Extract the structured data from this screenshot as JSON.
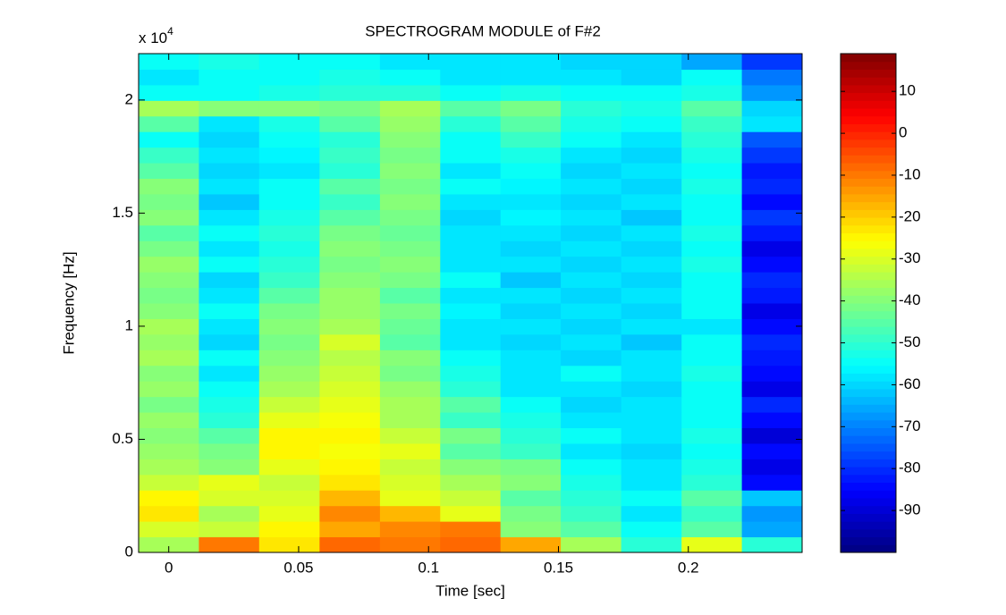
{
  "chart_data": {
    "type": "heatmap",
    "title": "SPECTROGRAM MODULE of F#2",
    "x_label": "Time [sec]",
    "y_label": "Frequency [Hz]",
    "y_scale_base": "x 10",
    "y_scale_exponent": "4",
    "colormap": "jet",
    "colormap_levels": 64,
    "x": [
      0,
      0.0232,
      0.0464,
      0.0697,
      0.0929,
      0.1161,
      0.1393,
      0.1625,
      0.1858,
      0.209,
      0.2322
    ],
    "y": [
      0.0345,
      0.1034,
      0.1723,
      0.2412,
      0.3101,
      0.379,
      0.4479,
      0.5168,
      0.5857,
      0.6546,
      0.7235,
      0.7924,
      0.8613,
      0.9302,
      0.9991,
      1.068,
      1.1369,
      1.2058,
      1.2747,
      1.3436,
      1.4125,
      1.4814,
      1.5503,
      1.6192,
      1.6881,
      1.757,
      1.8259,
      1.8948,
      1.9637,
      2.0326,
      2.1015,
      2.1704
    ],
    "z": [
      [
        -35,
        -10,
        -22,
        -8,
        -10,
        -8,
        -15,
        -35,
        -50,
        -28,
        -50
      ],
      [
        -30,
        -32,
        -25,
        -15,
        -12,
        -10,
        -40,
        -45,
        -55,
        -45,
        -65
      ],
      [
        -22,
        -35,
        -28,
        -12,
        -18,
        -28,
        -42,
        -48,
        -58,
        -48,
        -68
      ],
      [
        -25,
        -30,
        -30,
        -18,
        -28,
        -32,
        -45,
        -50,
        -55,
        -45,
        -62
      ],
      [
        -32,
        -28,
        -32,
        -22,
        -30,
        -35,
        -40,
        -52,
        -58,
        -50,
        -85
      ],
      [
        -36,
        -40,
        -28,
        -25,
        -32,
        -40,
        -42,
        -55,
        -58,
        -52,
        -88
      ],
      [
        -38,
        -42,
        -24,
        -26,
        -28,
        -45,
        -48,
        -58,
        -60,
        -55,
        -85
      ],
      [
        -40,
        -45,
        -25,
        -24,
        -32,
        -42,
        -50,
        -55,
        -58,
        -52,
        -90
      ],
      [
        -38,
        -50,
        -28,
        -26,
        -35,
        -48,
        -52,
        -58,
        -58,
        -55,
        -85
      ],
      [
        -42,
        -52,
        -32,
        -28,
        -36,
        -45,
        -55,
        -60,
        -58,
        -55,
        -80
      ],
      [
        -38,
        -55,
        -35,
        -30,
        -38,
        -50,
        -58,
        -58,
        -60,
        -55,
        -88
      ],
      [
        -40,
        -58,
        -38,
        -32,
        -42,
        -52,
        -58,
        -55,
        -58,
        -52,
        -85
      ],
      [
        -35,
        -55,
        -40,
        -34,
        -40,
        -55,
        -58,
        -60,
        -58,
        -55,
        -82
      ],
      [
        -38,
        -60,
        -42,
        -30,
        -45,
        -58,
        -60,
        -58,
        -62,
        -55,
        -80
      ],
      [
        -36,
        -58,
        -40,
        -36,
        -44,
        -58,
        -58,
        -60,
        -58,
        -58,
        -85
      ],
      [
        -40,
        -55,
        -42,
        -38,
        -42,
        -56,
        -60,
        -58,
        -60,
        -55,
        -88
      ],
      [
        -42,
        -58,
        -45,
        -38,
        -45,
        -58,
        -58,
        -60,
        -58,
        -55,
        -82
      ],
      [
        -40,
        -60,
        -48,
        -40,
        -42,
        -55,
        -62,
        -58,
        -60,
        -55,
        -80
      ],
      [
        -38,
        -55,
        -50,
        -42,
        -40,
        -58,
        -58,
        -60,
        -58,
        -52,
        -85
      ],
      [
        -42,
        -58,
        -52,
        -40,
        -42,
        -58,
        -60,
        -58,
        -60,
        -55,
        -88
      ],
      [
        -45,
        -55,
        -50,
        -42,
        -44,
        -58,
        -58,
        -60,
        -58,
        -52,
        -82
      ],
      [
        -40,
        -58,
        -52,
        -45,
        -42,
        -60,
        -56,
        -58,
        -62,
        -55,
        -78
      ],
      [
        -42,
        -62,
        -55,
        -48,
        -40,
        -58,
        -58,
        -60,
        -58,
        -55,
        -85
      ],
      [
        -40,
        -58,
        -55,
        -45,
        -42,
        -55,
        -56,
        -58,
        -60,
        -52,
        -80
      ],
      [
        -45,
        -60,
        -58,
        -50,
        -40,
        -58,
        -55,
        -60,
        -58,
        -55,
        -82
      ],
      [
        -48,
        -58,
        -56,
        -48,
        -42,
        -55,
        -52,
        -58,
        -60,
        -52,
        -78
      ],
      [
        -55,
        -60,
        -55,
        -50,
        -40,
        -55,
        -48,
        -55,
        -58,
        -50,
        -75
      ],
      [
        -45,
        -58,
        -52,
        -45,
        -38,
        -50,
        -45,
        -52,
        -55,
        -48,
        -58
      ],
      [
        -35,
        -40,
        -40,
        -42,
        -35,
        -45,
        -42,
        -50,
        -52,
        -45,
        -60
      ],
      [
        -55,
        -55,
        -52,
        -50,
        -50,
        -55,
        -52,
        -55,
        -55,
        -52,
        -68
      ],
      [
        -58,
        -55,
        -55,
        -52,
        -55,
        -58,
        -58,
        -58,
        -60,
        -55,
        -72
      ],
      [
        -55,
        -52,
        -55,
        -55,
        -58,
        -58,
        -58,
        -60,
        -60,
        -65,
        -78
      ]
    ],
    "xlim": [
      -0.0116,
      0.2438
    ],
    "ylim": [
      0,
      2.205
    ],
    "xticks": [
      0,
      0.05,
      0.1,
      0.15,
      0.2
    ],
    "yticks": [
      0,
      0.5,
      1,
      1.5,
      2
    ],
    "clim": [
      -100,
      19
    ],
    "cticks": [
      -90,
      -80,
      -70,
      -60,
      -50,
      -40,
      -30,
      -20,
      -10,
      0,
      10
    ]
  }
}
